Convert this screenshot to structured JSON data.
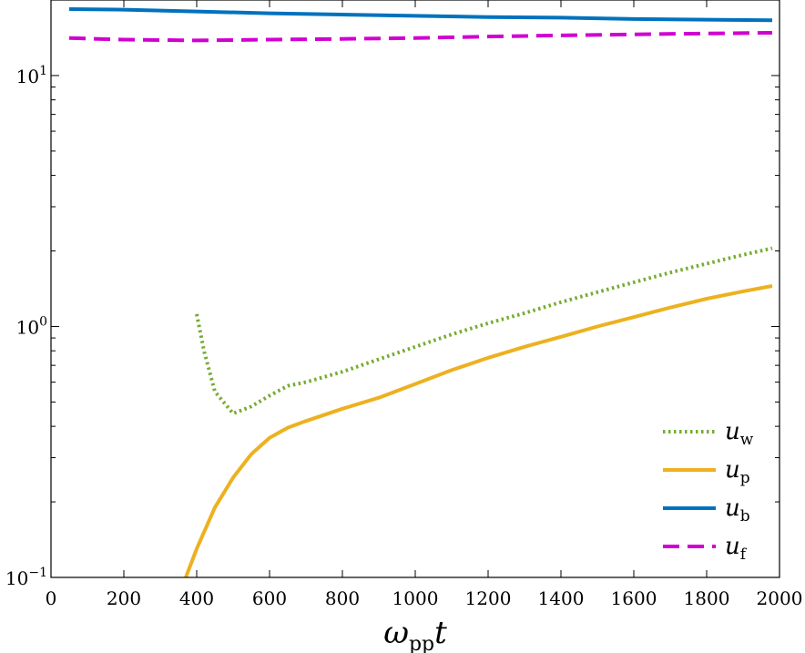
{
  "chart_data": {
    "type": "line",
    "title": "",
    "xlabel": "ω",
    "xlabel_sub": "pp",
    "xlabel_suffix": "t",
    "ylabel": "",
    "xlim": [
      0,
      2000
    ],
    "ylim": [
      0.1,
      20
    ],
    "yscale": "log",
    "grid": false,
    "legend_position": "bottom-right",
    "x_ticks": [
      0,
      200,
      400,
      600,
      800,
      1000,
      1200,
      1400,
      1600,
      1800,
      2000
    ],
    "x_tick_labels": [
      "0",
      "200",
      "400",
      "600",
      "800",
      "1000",
      "1200",
      "1400",
      "1600",
      "1800",
      "2000"
    ],
    "y_ticks": [
      0.1,
      1,
      10
    ],
    "y_tick_labels": [
      {
        "base": "10",
        "exp": "−1"
      },
      {
        "base": "10",
        "exp": "0"
      },
      {
        "base": "10",
        "exp": "1"
      }
    ],
    "series": [
      {
        "name": "u",
        "sub": "w",
        "color": "#77AC30",
        "style": "dotted",
        "x": [
          400,
          420,
          450,
          500,
          550,
          600,
          650,
          700,
          800,
          900,
          1000,
          1100,
          1200,
          1300,
          1400,
          1500,
          1600,
          1700,
          1800,
          1900,
          1980
        ],
        "y": [
          1.12,
          0.8,
          0.55,
          0.45,
          0.48,
          0.53,
          0.58,
          0.6,
          0.66,
          0.74,
          0.83,
          0.93,
          1.03,
          1.13,
          1.25,
          1.37,
          1.5,
          1.64,
          1.78,
          1.93,
          2.05
        ]
      },
      {
        "name": "u",
        "sub": "p",
        "color": "#EDB120",
        "style": "solid",
        "x": [
          370,
          400,
          450,
          500,
          550,
          600,
          650,
          700,
          800,
          900,
          1000,
          1100,
          1200,
          1300,
          1400,
          1500,
          1600,
          1700,
          1800,
          1900,
          1980
        ],
        "y": [
          0.1,
          0.13,
          0.19,
          0.25,
          0.31,
          0.36,
          0.395,
          0.42,
          0.47,
          0.52,
          0.59,
          0.67,
          0.75,
          0.83,
          0.91,
          1.0,
          1.09,
          1.19,
          1.29,
          1.38,
          1.45
        ]
      },
      {
        "name": "u",
        "sub": "b",
        "color": "#0072BD",
        "style": "solid",
        "x": [
          50,
          200,
          400,
          600,
          800,
          1000,
          1200,
          1400,
          1600,
          1800,
          1980
        ],
        "y": [
          18.4,
          18.3,
          18.0,
          17.7,
          17.5,
          17.3,
          17.1,
          17.0,
          16.8,
          16.7,
          16.6
        ]
      },
      {
        "name": "u",
        "sub": "f",
        "color": "#D000D0",
        "style": "dashed",
        "x": [
          50,
          200,
          400,
          600,
          800,
          1000,
          1200,
          1400,
          1600,
          1800,
          1980
        ],
        "y": [
          14.1,
          13.9,
          13.8,
          13.9,
          14.0,
          14.1,
          14.3,
          14.45,
          14.6,
          14.7,
          14.8
        ]
      }
    ]
  }
}
